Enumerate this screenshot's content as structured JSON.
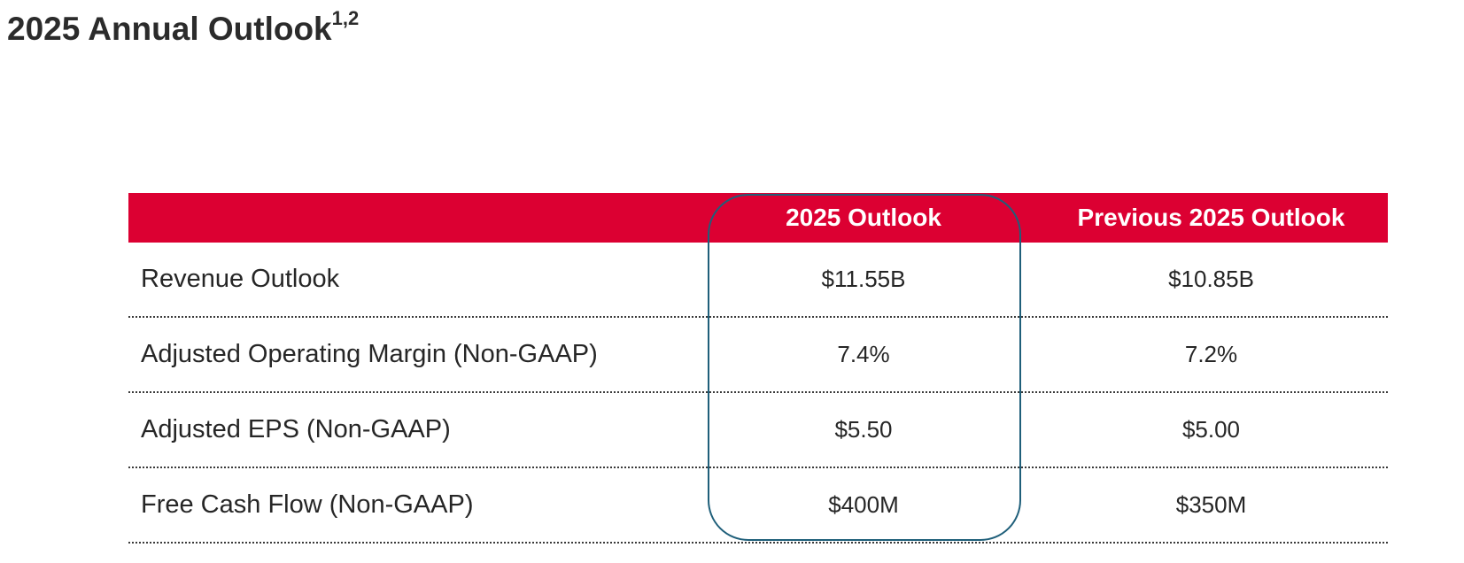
{
  "title": {
    "text": "2025 Annual Outlook",
    "footnote": "1,2"
  },
  "table": {
    "headers": [
      "",
      "2025 Outlook",
      "Previous 2025 Outlook"
    ],
    "rows": [
      {
        "label": "Revenue Outlook",
        "current": "$11.55B",
        "previous": "$10.85B"
      },
      {
        "label": "Adjusted Operating Margin (Non-GAAP)",
        "current": "7.4%",
        "previous": "7.2%"
      },
      {
        "label": "Adjusted EPS (Non-GAAP)",
        "current": "$5.50",
        "previous": "$5.00"
      },
      {
        "label": "Free Cash Flow (Non-GAAP)",
        "current": "$400M",
        "previous": "$350M"
      }
    ]
  },
  "colors": {
    "header_band": "#dc0032",
    "highlight_outline": "#1f5f7a",
    "text": "#262626"
  }
}
